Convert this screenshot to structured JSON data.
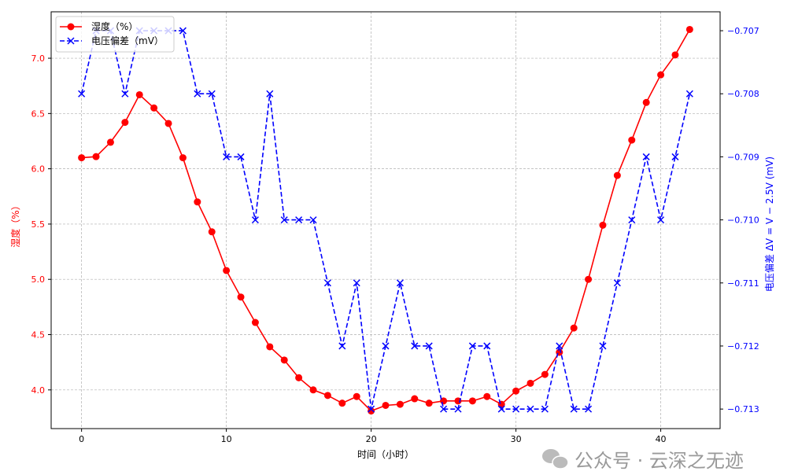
{
  "chart_data": {
    "type": "line",
    "title": "",
    "xlabel": "时间（小时）",
    "ylabel_left": "湿度（%）",
    "ylabel_right": "电压偏差 ΔV = V − 2.5V (mV)",
    "xlim": [
      -2.1,
      44.1
    ],
    "ylim_left": [
      3.65,
      7.42
    ],
    "ylim_right": [
      -0.71331,
      -0.7067
    ],
    "x_ticks": [
      0,
      10,
      20,
      30,
      40
    ],
    "y_left_ticks": [
      "4.0",
      "4.5",
      "5.0",
      "5.5",
      "6.0",
      "6.5",
      "7.0"
    ],
    "y_right_ticks": [
      "−0.713",
      "−0.712",
      "−0.711",
      "−0.710",
      "−0.709",
      "−0.708",
      "−0.707"
    ],
    "grid": true,
    "legend_position": "top-left",
    "x": [
      0,
      1,
      2,
      3,
      4,
      5,
      6,
      7,
      8,
      9,
      10,
      11,
      12,
      13,
      14,
      15,
      16,
      17,
      18,
      19,
      20,
      21,
      22,
      23,
      24,
      25,
      26,
      27,
      28,
      29,
      30,
      31,
      32,
      33,
      34,
      35,
      36,
      37,
      38,
      39,
      40,
      41,
      42
    ],
    "series": [
      {
        "name": "湿度（%）",
        "axis": "left",
        "color": "#ff0000",
        "style": "solid",
        "marker": "circle",
        "values": [
          6.1,
          6.11,
          6.24,
          6.42,
          6.67,
          6.55,
          6.41,
          6.1,
          5.7,
          5.43,
          5.08,
          4.84,
          4.61,
          4.39,
          4.27,
          4.11,
          4.0,
          3.95,
          3.88,
          3.94,
          3.81,
          3.86,
          3.87,
          3.92,
          3.88,
          3.9,
          3.9,
          3.9,
          3.94,
          3.87,
          3.99,
          4.06,
          4.14,
          4.34,
          4.56,
          5.0,
          5.49,
          5.94,
          6.26,
          6.6,
          6.85,
          7.03,
          7.26
        ]
      },
      {
        "name": "电压偏差（mV）",
        "axis": "right",
        "color": "#0000ff",
        "style": "dashed",
        "marker": "x",
        "values": [
          -0.708,
          -0.707,
          -0.707,
          -0.708,
          -0.707,
          -0.707,
          -0.707,
          -0.707,
          -0.708,
          -0.708,
          -0.709,
          -0.709,
          -0.71,
          -0.708,
          -0.71,
          -0.71,
          -0.71,
          -0.711,
          -0.712,
          -0.711,
          -0.713,
          -0.712,
          -0.711,
          -0.712,
          -0.712,
          -0.713,
          -0.713,
          -0.712,
          -0.712,
          -0.713,
          -0.713,
          -0.713,
          -0.713,
          -0.712,
          -0.713,
          -0.713,
          -0.712,
          -0.711,
          -0.71,
          -0.709,
          -0.71,
          -0.709,
          -0.708
        ]
      }
    ]
  },
  "watermark": "公众号 · 云深之无迹"
}
